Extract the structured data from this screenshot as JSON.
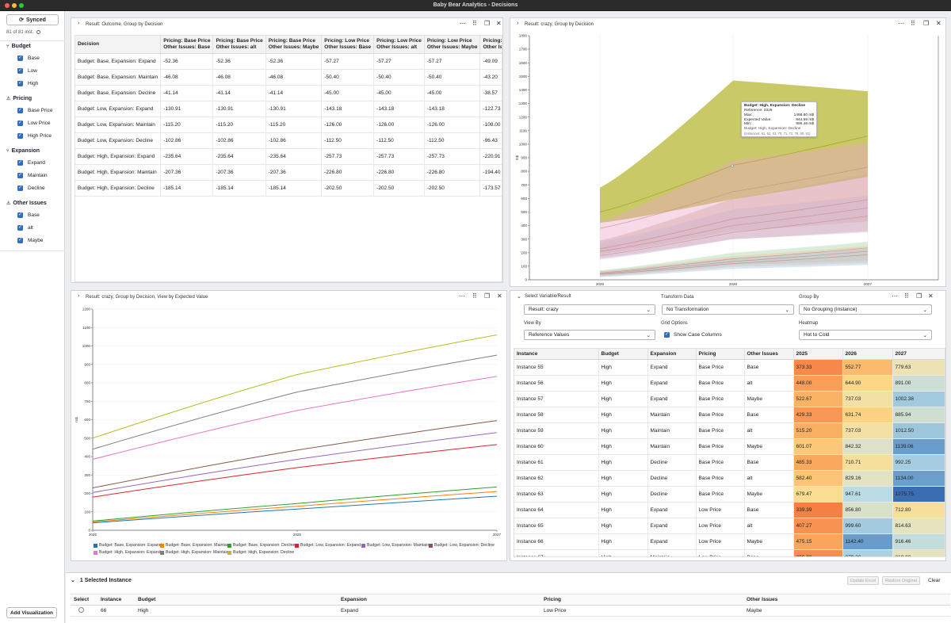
{
  "window": {
    "title": "Baby Bear Analytics - Decisions"
  },
  "sidebar": {
    "synced_label": "Synced",
    "instances_label": "81 of 81 inst.",
    "groups": [
      {
        "name": "Budget",
        "icon": "branch-icon",
        "options": [
          "Base",
          "Low",
          "High"
        ]
      },
      {
        "name": "Pricing",
        "icon": "warning-icon",
        "options": [
          "Base Price",
          "Low Price",
          "High Price"
        ]
      },
      {
        "name": "Expansion",
        "icon": "branch-icon",
        "options": [
          "Expand",
          "Maintain",
          "Decline"
        ]
      },
      {
        "name": "Other Issues",
        "icon": "warning-icon",
        "options": [
          "Base",
          "alt",
          "Maybe"
        ]
      }
    ],
    "add_visualization_label": "Add Visualization"
  },
  "panel_outcome": {
    "title": "Result: Outcome, Group by Decision",
    "columns": [
      {
        "l1": "Decision",
        "l2": ""
      },
      {
        "l1": "Pricing: Base Price",
        "l2": "Other Issues: Base"
      },
      {
        "l1": "Pricing: Base Price",
        "l2": "Other Issues: alt"
      },
      {
        "l1": "Pricing: Base Price",
        "l2": "Other Issues: Maybe"
      },
      {
        "l1": "Pricing: Low Price",
        "l2": "Other Issues: Base"
      },
      {
        "l1": "Pricing: Low Price",
        "l2": "Other Issues: alt"
      },
      {
        "l1": "Pricing: Low Price",
        "l2": "Other Issues: Maybe"
      },
      {
        "l1": "Pricing: High",
        "l2": "Other Issues:"
      }
    ],
    "rows": [
      [
        "Budget: Base, Expansion: Expand",
        "-52.36",
        "-52.36",
        "-52.36",
        "-57.27",
        "-57.27",
        "-57.27",
        "-49.09"
      ],
      [
        "Budget: Base, Expansion: Maintain",
        "-46.08",
        "-46.08",
        "-46.08",
        "-50.40",
        "-50.40",
        "-50.40",
        "-43.20"
      ],
      [
        "Budget: Base, Expansion: Decline",
        "-41.14",
        "-41.14",
        "-41.14",
        "-45.00",
        "-45.00",
        "-45.00",
        "-38.57"
      ],
      [
        "Budget: Low, Expansion: Expand",
        "-130.91",
        "-130.91",
        "-130.91",
        "-143.18",
        "-143.18",
        "-143.18",
        "-122.73"
      ],
      [
        "Budget: Low, Expansion: Maintain",
        "-115.20",
        "-115.20",
        "-115.20",
        "-126.00",
        "-126.00",
        "-126.00",
        "-108.00"
      ],
      [
        "Budget: Low, Expansion: Decline",
        "-102.86",
        "-102.86",
        "-102.86",
        "-112.50",
        "-112.50",
        "-112.50",
        "-96.43"
      ],
      [
        "Budget: High, Expansion: Expand",
        "-235.64",
        "-235.64",
        "-235.64",
        "-257.73",
        "-257.73",
        "-257.73",
        "-220.91"
      ],
      [
        "Budget: High, Expansion: Maintain",
        "-207.36",
        "-207.36",
        "-207.36",
        "-226.80",
        "-226.80",
        "-226.80",
        "-194.40"
      ],
      [
        "Budget: High, Expansion: Decline",
        "-185.14",
        "-185.14",
        "-185.14",
        "-202.50",
        "-202.50",
        "-202.50",
        "-173.57"
      ]
    ]
  },
  "panel_band": {
    "title": "Result: crazy, Group by Decision",
    "tooltip": {
      "heading": "Budget: High, Expansion: Decline",
      "reference": "Reference: 2026",
      "rows": [
        [
          "Max:",
          "1468.80 m$"
        ],
        [
          "Expected Value:",
          "844.59 m$"
        ],
        [
          "Min:",
          "595.46 m$"
        ]
      ],
      "footer": "Budget: High, Expansion: Decline",
      "instances": "(Instances: 61, 62, 63, 70, 71, 72, 79, 80, 81)"
    }
  },
  "panel_line": {
    "title": "Result: crazy, Group by Decision, View by Expected Value"
  },
  "panel_grid": {
    "select_variable_label": "Select Variable/Result",
    "result_value": "Result: crazy",
    "transform_label": "Transform Data",
    "transform_value": "No Transformation",
    "group_label": "Group By",
    "group_value": "No Grouping (Instance)",
    "viewby_label": "View By",
    "viewby_value": "Reference Values",
    "grid_options_label": "Grid Options",
    "show_case_label": "Show Case Columns",
    "heatmap_label": "Heatmap",
    "heatmap_value": "Hot to Cold",
    "columns": [
      "Instance",
      "Budget",
      "Expansion",
      "Pricing",
      "Other Issues",
      "2025",
      "2026",
      "2027"
    ],
    "rows": [
      [
        "Instance 55",
        "High",
        "Expand",
        "Base Price",
        "Base",
        "373.33",
        "552.77",
        "779.63"
      ],
      [
        "Instance 56",
        "High",
        "Expand",
        "Base Price",
        "alt",
        "448.00",
        "644.90",
        "891.00"
      ],
      [
        "Instance 57",
        "High",
        "Expand",
        "Base Price",
        "Maybe",
        "522.67",
        "737.03",
        "1002.38"
      ],
      [
        "Instance 58",
        "High",
        "Maintain",
        "Base Price",
        "Base",
        "429.33",
        "631.74",
        "885.94"
      ],
      [
        "Instance 59",
        "High",
        "Maintain",
        "Base Price",
        "alt",
        "515.20",
        "737.03",
        "1012.50"
      ],
      [
        "Instance 60",
        "High",
        "Maintain",
        "Base Price",
        "Maybe",
        "601.07",
        "842.32",
        "1139.06"
      ],
      [
        "Instance 61",
        "High",
        "Decline",
        "Base Price",
        "Base",
        "485.33",
        "710.71",
        "992.25"
      ],
      [
        "Instance 62",
        "High",
        "Decline",
        "Base Price",
        "alt",
        "582.40",
        "829.16",
        "1134.00"
      ],
      [
        "Instance 63",
        "High",
        "Decline",
        "Base Price",
        "Maybe",
        "679.47",
        "947.61",
        "1275.75"
      ],
      [
        "Instance 64",
        "High",
        "Expand",
        "Low Price",
        "Base",
        "339.39",
        "856.80",
        "712.80"
      ],
      [
        "Instance 65",
        "High",
        "Expand",
        "Low Price",
        "alt",
        "407.27",
        "999.60",
        "814.63"
      ],
      [
        "Instance 66",
        "High",
        "Expand",
        "Low Price",
        "Maybe",
        "475.15",
        "1142.40",
        "916.46"
      ],
      [
        "Instance 67",
        "High",
        "Maintain",
        "Low Price",
        "Base",
        "390.30",
        "979.20",
        "810.00"
      ]
    ]
  },
  "bottom": {
    "header": "1 Selected Instance",
    "update_excel": "Update Excel",
    "restore_original": "Restore Original",
    "clear": "Clear",
    "columns": [
      "Select",
      "Instance",
      "Budget",
      "Expansion",
      "Pricing",
      "Other Issues"
    ],
    "row": [
      "66",
      "High",
      "Expand",
      "Low Price",
      "Maybe"
    ]
  },
  "chart_data": [
    {
      "type": "area",
      "title": "Result: crazy, Group by Decision",
      "x": [
        "2025",
        "2026",
        "2027"
      ],
      "ylim": [
        0,
        1800
      ],
      "yticks": [
        0,
        100,
        200,
        300,
        400,
        500,
        600,
        700,
        800,
        900,
        1000,
        1100,
        1200,
        1300,
        1400,
        1500,
        1600,
        1700,
        1800
      ],
      "ylabel": "m$",
      "series": [
        {
          "name": "Budget: High, Expansion: Decline",
          "color": "#b8b734",
          "min": [
            420,
            595,
            760
          ],
          "max": [
            680,
            1469,
            1390
          ],
          "ev": [
            500,
            845,
            1060
          ]
        },
        {
          "name": "Budget: High, Expansion: Maintain",
          "color": "#e9a8c8",
          "min": [
            260,
            520,
            640
          ],
          "max": [
            430,
            880,
            1010
          ],
          "ev": [
            380,
            650,
            830
          ]
        },
        {
          "name": "Budget: Low, Expansion: Decline",
          "color": "#d4a7a0",
          "min": [
            190,
            360,
            430
          ],
          "max": [
            290,
            600,
            780
          ],
          "ev": [
            230,
            450,
            590
          ]
        },
        {
          "name": "Budget: High, Expansion: Expand",
          "color": "#e6a3a0",
          "min": [
            160,
            300,
            360
          ],
          "max": [
            260,
            520,
            640
          ],
          "ev": [
            180,
            350,
            470
          ]
        },
        {
          "name": "Budget: Low, Expansion: Expand",
          "color": "#c8b6d8",
          "min": [
            150,
            300,
            350
          ],
          "max": [
            280,
            520,
            620
          ],
          "ev": [
            210,
            400,
            530
          ]
        },
        {
          "name": "Budget: Base, Expansion: Decline",
          "color": "#a8d4a8",
          "min": [
            30,
            110,
            140
          ],
          "max": [
            70,
            200,
            280
          ],
          "ev": [
            50,
            155,
            235
          ]
        },
        {
          "name": "Budget: Base, Expansion: Maintain",
          "color": "#f1c29a",
          "min": [
            25,
            95,
            125
          ],
          "max": [
            65,
            175,
            250
          ],
          "ev": [
            45,
            135,
            210
          ]
        },
        {
          "name": "Budget: Base, Expansion: Expand",
          "color": "#a9c3e0",
          "min": [
            20,
            80,
            110
          ],
          "max": [
            60,
            160,
            230
          ],
          "ev": [
            40,
            120,
            185
          ]
        }
      ]
    },
    {
      "type": "line",
      "title": "Result: crazy, Group by Decision, View by Expected Value",
      "x": [
        "2025",
        "2026",
        "2027"
      ],
      "ylim": [
        0,
        1200
      ],
      "yticks": [
        0,
        100,
        200,
        300,
        400,
        500,
        600,
        700,
        800,
        900,
        1000,
        1100,
        1200
      ],
      "ylabel": "m$",
      "series": [
        {
          "name": "Budget: Base, Expansion: Expand",
          "color": "#1f77b4",
          "values": [
            40,
            115,
            185
          ]
        },
        {
          "name": "Budget: Base, Expansion: Maintain",
          "color": "#ff7f0e",
          "values": [
            45,
            130,
            210
          ]
        },
        {
          "name": "Budget: Base, Expansion: Decline",
          "color": "#2ca02c",
          "values": [
            50,
            145,
            235
          ]
        },
        {
          "name": "Budget: Low, Expansion: Expand",
          "color": "#d62728",
          "values": [
            180,
            340,
            465
          ]
        },
        {
          "name": "Budget: Low, Expansion: Maintain",
          "color": "#9467bd",
          "values": [
            205,
            385,
            530
          ]
        },
        {
          "name": "Budget: Low, Expansion: Decline",
          "color": "#8c564b",
          "values": [
            230,
            435,
            595
          ]
        },
        {
          "name": "Budget: High, Expansion: Expand",
          "color": "#e377c2",
          "values": [
            385,
            650,
            835
          ]
        },
        {
          "name": "Budget: High, Expansion: Maintain",
          "color": "#7f7f7f",
          "values": [
            440,
            750,
            950
          ]
        },
        {
          "name": "Budget: High, Expansion: Decline",
          "color": "#bcbd22",
          "values": [
            500,
            845,
            1060
          ]
        }
      ]
    }
  ]
}
